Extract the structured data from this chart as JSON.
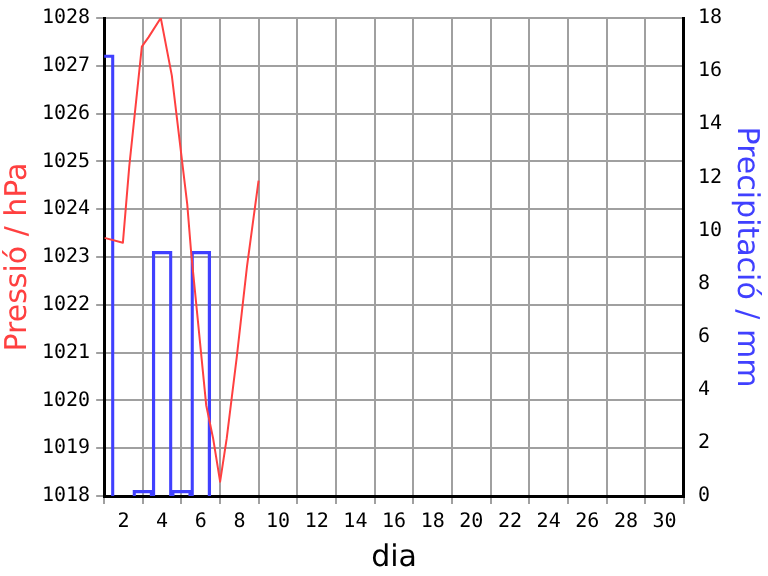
{
  "chart_data": {
    "type": "line",
    "xlabel": "dia",
    "ylabel": "Pressió / hPa",
    "y2label": "Precipitació / mm",
    "xlim": [
      1,
      31
    ],
    "xticks": [
      2,
      4,
      6,
      8,
      10,
      12,
      14,
      16,
      18,
      20,
      22,
      24,
      26,
      28,
      30
    ],
    "ylim": [
      1018,
      1028
    ],
    "yticks": [
      1018,
      1019,
      1020,
      1021,
      1022,
      1023,
      1024,
      1025,
      1026,
      1027,
      1028
    ],
    "y2lim": [
      0,
      18
    ],
    "y2ticks": [
      0,
      2,
      4,
      6,
      8,
      10,
      12,
      14,
      16,
      18
    ],
    "grid": true,
    "legend": false,
    "series": [
      {
        "type": "bar",
        "axis": "y2",
        "color": "#4040ff",
        "x": [
          1,
          2,
          3,
          4,
          5,
          6
        ],
        "values": [
          16.6,
          0,
          0.2,
          9.2,
          0.2,
          9.2
        ]
      },
      {
        "color": "#ff4040",
        "x": [
          1.02,
          1.97,
          2.3,
          2.95,
          3.3,
          3.93,
          4.5,
          5.3,
          5.5,
          6.28,
          6.64,
          7.0,
          7.34,
          7.86,
          8.39,
          8.99
        ],
        "values": [
          1023.4,
          1023.3,
          1024.9,
          1027.4,
          1027.6,
          1028.0,
          1026.8,
          1024.1,
          1023.1,
          1019.9,
          1019.2,
          1018.3,
          1019.2,
          1020.9,
          1022.8,
          1024.6
        ]
      }
    ]
  }
}
